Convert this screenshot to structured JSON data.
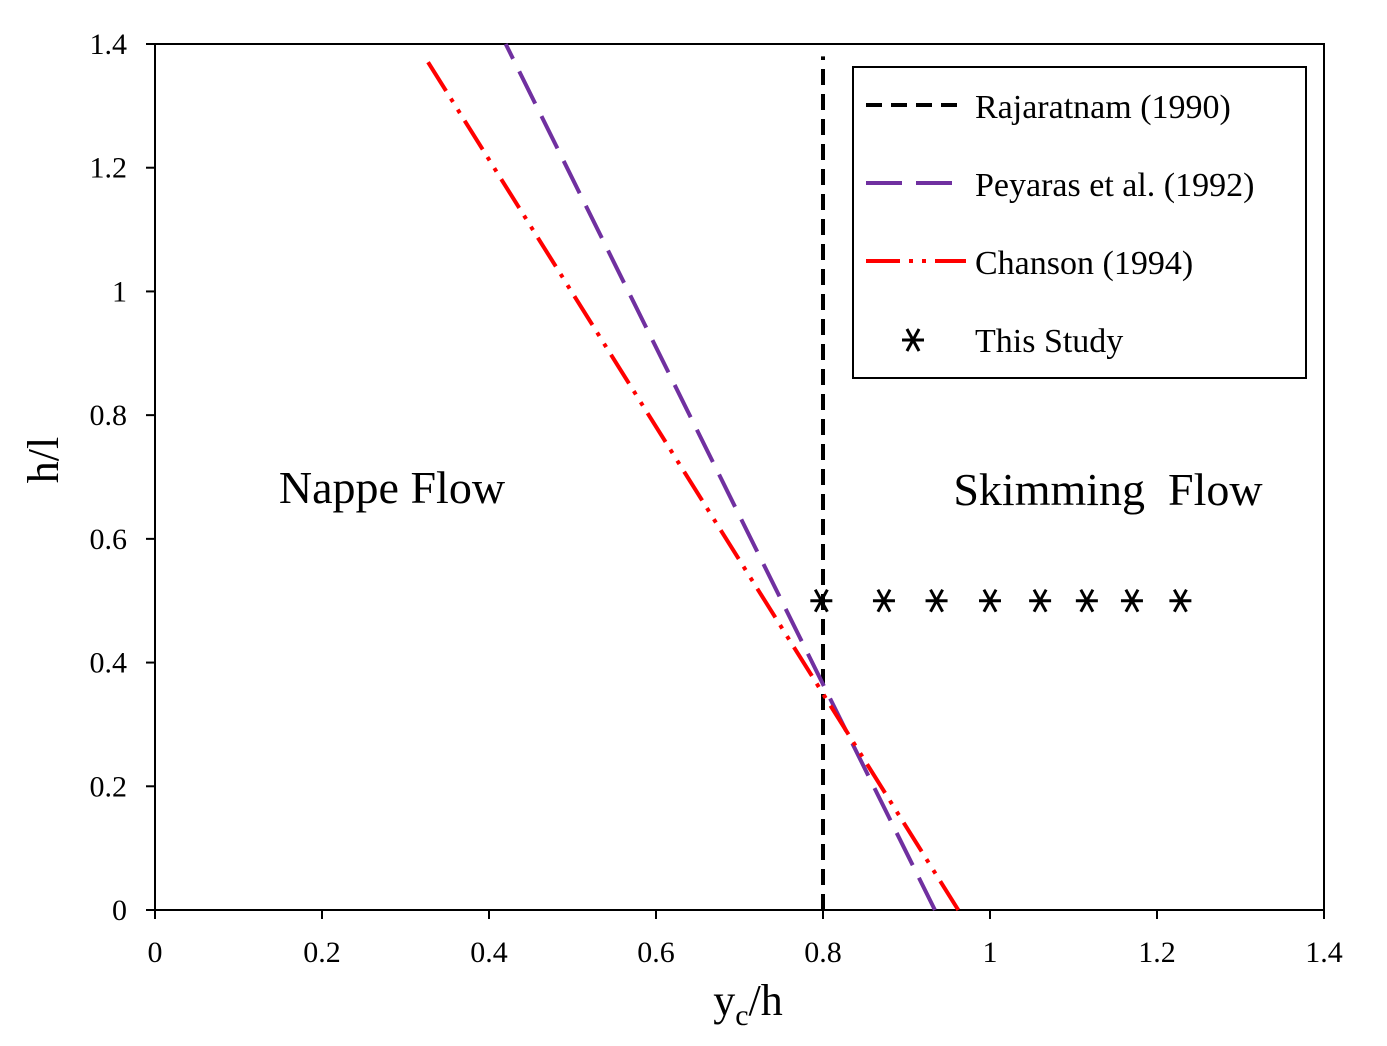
{
  "chart_data": {
    "type": "line",
    "title": "",
    "xlabel": "y",
    "xlabel_sub": "c",
    "xlabel_suffix": "/h",
    "ylabel": "h/l",
    "xlim": [
      0,
      1.4
    ],
    "ylim": [
      0,
      1.4
    ],
    "xticks": [
      "0",
      "0.2",
      "0.4",
      "0.6",
      "0.8",
      "1",
      "1.2",
      "1.4"
    ],
    "yticks": [
      "0",
      "0.2",
      "0.4",
      "0.6",
      "0.8",
      "1",
      "1.2",
      "1.4"
    ],
    "grid": false,
    "legend_position": "top-right",
    "regions": [
      {
        "label": "Nappe Flow"
      },
      {
        "label": "Skimming  Flow"
      }
    ],
    "series": [
      {
        "name": "Rajaratnam (1990)",
        "style": "dashed",
        "color": "#000000",
        "x": [
          0.8,
          0.8
        ],
        "y": [
          0,
          1.38
        ]
      },
      {
        "name": "Peyaras et al. (1992)",
        "style": "long-dash",
        "color": "#7030a0",
        "x": [
          0.934,
          0.42
        ],
        "y": [
          0,
          1.4
        ]
      },
      {
        "name": "Chanson (1994)",
        "style": "dash-dot-dot",
        "color": "#ff0000",
        "x": [
          0.962,
          0.325
        ],
        "y": [
          0,
          1.375
        ]
      },
      {
        "name": "This Study",
        "style": "markers",
        "marker": "asterisk",
        "color": "#000000",
        "x": [
          0.798,
          0.873,
          0.936,
          1.0,
          1.06,
          1.116,
          1.17,
          1.228
        ],
        "y": [
          0.5,
          0.5,
          0.5,
          0.5,
          0.5,
          0.5,
          0.5,
          0.5
        ]
      }
    ]
  }
}
